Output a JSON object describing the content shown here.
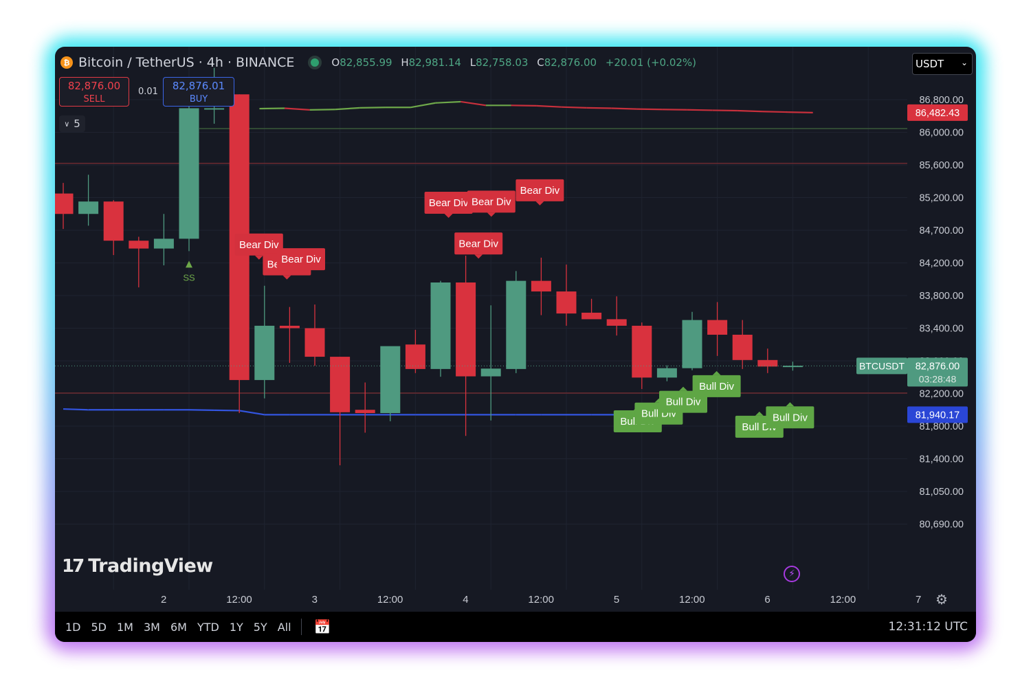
{
  "header": {
    "symbol_title": "Bitcoin / TetherUS · 4h · BINANCE",
    "open_label": "O",
    "open_value": "82,855.99",
    "high_label": "H",
    "high_value": "82,981.14",
    "low_label": "L",
    "low_value": "82,758.03",
    "close_label": "C",
    "close_value": "82,876.00",
    "change": "+20.01 (+0.02%)"
  },
  "trade": {
    "sell_price": "82,876.00",
    "sell_label": "SELL",
    "spread": "0.01",
    "buy_price": "82,876.01",
    "buy_label": "BUY"
  },
  "indicator_count": "5",
  "currency": "USDT",
  "logo_text": "TradingView",
  "bottom": {
    "ranges": [
      "1D",
      "5D",
      "1M",
      "3M",
      "6M",
      "YTD",
      "1Y",
      "5Y",
      "All"
    ],
    "clock": "12:31:12 UTC"
  },
  "colors": {
    "background": "#161923",
    "up": "#4f9a80",
    "down": "#d9323e",
    "bull_label": "#5fa645",
    "bear_label": "#d4313d",
    "blue_line": "#3355e0",
    "red_hline": "#6e2a30",
    "green_hline": "#3b5a3a"
  },
  "chart_data": {
    "type": "candlestick",
    "symbol": "BTCUSDT",
    "timeframe": "4h",
    "y_ticks": [
      "86,800.00",
      "86,000.00",
      "85,600.00",
      "85,200.00",
      "84,700.00",
      "84,200.00",
      "83,800.00",
      "83,400.00",
      "83,000.00",
      "82,200.00",
      "81,800.00",
      "81,400.00",
      "81,050.00",
      "80,690.00"
    ],
    "x_ticks": [
      {
        "label": "2",
        "i": 2
      },
      {
        "label": "12:00",
        "i": 5
      },
      {
        "label": "3",
        "i": 8
      },
      {
        "label": "12:00",
        "i": 11
      },
      {
        "label": "4",
        "i": 14
      },
      {
        "label": "12:00",
        "i": 17
      },
      {
        "label": "5",
        "i": 20
      },
      {
        "label": "12:00",
        "i": 23
      },
      {
        "label": "6",
        "i": 26
      },
      {
        "label": "12:00",
        "i": 29
      },
      {
        "label": "7",
        "i": 32
      }
    ],
    "candles": [
      {
        "i": 0,
        "o": 85250,
        "h": 85380,
        "l": 84720,
        "c": 84950
      },
      {
        "i": 1,
        "o": 84950,
        "h": 85480,
        "l": 84770,
        "c": 85140
      },
      {
        "i": 2,
        "o": 85140,
        "h": 85160,
        "l": 84320,
        "c": 84540
      },
      {
        "i": 3,
        "o": 84540,
        "h": 84600,
        "l": 83900,
        "c": 84420
      },
      {
        "i": 4,
        "o": 84420,
        "h": 84950,
        "l": 84170,
        "c": 84570
      },
      {
        "i": 5,
        "o": 84570,
        "h": 86790,
        "l": 84380,
        "c": 86590
      },
      {
        "i": 6,
        "o": 86590,
        "h": 87580,
        "l": 86210,
        "c": 86590
      },
      {
        "i": 7,
        "o": 86930,
        "h": 86930,
        "l": 81960,
        "c": 82530
      },
      {
        "i": 8,
        "o": 82530,
        "h": 83920,
        "l": 82140,
        "c": 83430
      },
      {
        "i": 9,
        "o": 83430,
        "h": 83660,
        "l": 82950,
        "c": 83400
      },
      {
        "i": 10,
        "o": 83400,
        "h": 83690,
        "l": 82880,
        "c": 83050
      },
      {
        "i": 11,
        "o": 83050,
        "h": 83050,
        "l": 81330,
        "c": 81970
      },
      {
        "i": 12,
        "o": 82000,
        "h": 82470,
        "l": 81720,
        "c": 81960
      },
      {
        "i": 13,
        "o": 81960,
        "h": 83140,
        "l": 81860,
        "c": 83180
      },
      {
        "i": 14,
        "o": 83200,
        "h": 83380,
        "l": 82700,
        "c": 82800
      },
      {
        "i": 15,
        "o": 82800,
        "h": 83980,
        "l": 82610,
        "c": 83960
      },
      {
        "i": 16,
        "o": 83960,
        "h": 84310,
        "l": 81680,
        "c": 82620
      },
      {
        "i": 17,
        "o": 82620,
        "h": 83680,
        "l": 81870,
        "c": 82810
      },
      {
        "i": 18,
        "o": 82800,
        "h": 84100,
        "l": 82700,
        "c": 83980
      },
      {
        "i": 19,
        "o": 83980,
        "h": 84280,
        "l": 83560,
        "c": 83850
      },
      {
        "i": 20,
        "o": 83850,
        "h": 84180,
        "l": 83430,
        "c": 83580
      },
      {
        "i": 21,
        "o": 83590,
        "h": 83760,
        "l": 83520,
        "c": 83510
      },
      {
        "i": 22,
        "o": 83510,
        "h": 83790,
        "l": 83310,
        "c": 83430
      },
      {
        "i": 23,
        "o": 83430,
        "h": 83470,
        "l": 82310,
        "c": 82590
      },
      {
        "i": 24,
        "o": 82590,
        "h": 82890,
        "l": 82500,
        "c": 82820
      },
      {
        "i": 25,
        "o": 82820,
        "h": 83600,
        "l": 82770,
        "c": 83500
      },
      {
        "i": 26,
        "o": 83500,
        "h": 83720,
        "l": 83060,
        "c": 83320
      },
      {
        "i": 27,
        "o": 83320,
        "h": 83500,
        "l": 82800,
        "c": 83010
      },
      {
        "i": 28,
        "o": 83010,
        "h": 83150,
        "l": 82700,
        "c": 82860
      },
      {
        "i": 29,
        "o": 82860,
        "h": 82980,
        "l": 82760,
        "c": 82880
      }
    ],
    "signals": [
      {
        "text": "SS",
        "type": "buy_marker",
        "i": 5
      },
      {
        "text": "Bear Div",
        "type": "bear",
        "i": 8
      },
      {
        "text": "Bear Div",
        "type": "bear",
        "i": 9
      },
      {
        "text": "Bear Div",
        "type": "bear",
        "i": 10
      },
      {
        "text": "Bear Div",
        "type": "bear",
        "i": 16
      },
      {
        "text": "Bear Div",
        "type": "bear",
        "i": 18
      },
      {
        "text": "Bear Div",
        "type": "bear",
        "i": 19
      },
      {
        "text": "Bear Div",
        "type": "bear",
        "i": 17
      },
      {
        "text": "Bull Div",
        "type": "bull",
        "i": 23
      },
      {
        "text": "Bull Div",
        "type": "bull",
        "i": 24
      },
      {
        "text": "Bull Div",
        "type": "bull",
        "i": 25
      },
      {
        "text": "Bull Div",
        "type": "bull",
        "i": 26
      },
      {
        "text": "Bull Div",
        "type": "bull",
        "i": 28
      },
      {
        "text": "Bull Div",
        "type": "bull",
        "i": 29
      }
    ],
    "lines": {
      "upper_band": [
        86580,
        86590,
        86550,
        86560,
        86600,
        86610,
        86610,
        86720,
        86750,
        86660,
        86660,
        86650,
        86620,
        86600,
        86590,
        86570,
        86560,
        86552,
        86540,
        86530,
        86510,
        86495,
        86482
      ],
      "green_hline": 86090,
      "red_hlines": [
        85620,
        82210
      ],
      "blue_band": [
        82010,
        82000,
        82000,
        82000,
        82000,
        82000,
        81995,
        81990,
        81940,
        81940,
        81940,
        81940,
        81940,
        81940,
        81940,
        81940,
        81940,
        81940,
        81940,
        81940,
        81940,
        81940,
        81940
      ]
    },
    "price_labels": [
      {
        "text": "86,482.43",
        "value": 86482.43,
        "color": "#d9323e"
      },
      {
        "text": "81,940.17",
        "value": 81940.17,
        "color": "#2a46d6"
      }
    ],
    "current": {
      "symbol_tag": "BTCUSDT",
      "price": "82,876.00",
      "countdown": "03:28:48",
      "value": 82876
    }
  }
}
